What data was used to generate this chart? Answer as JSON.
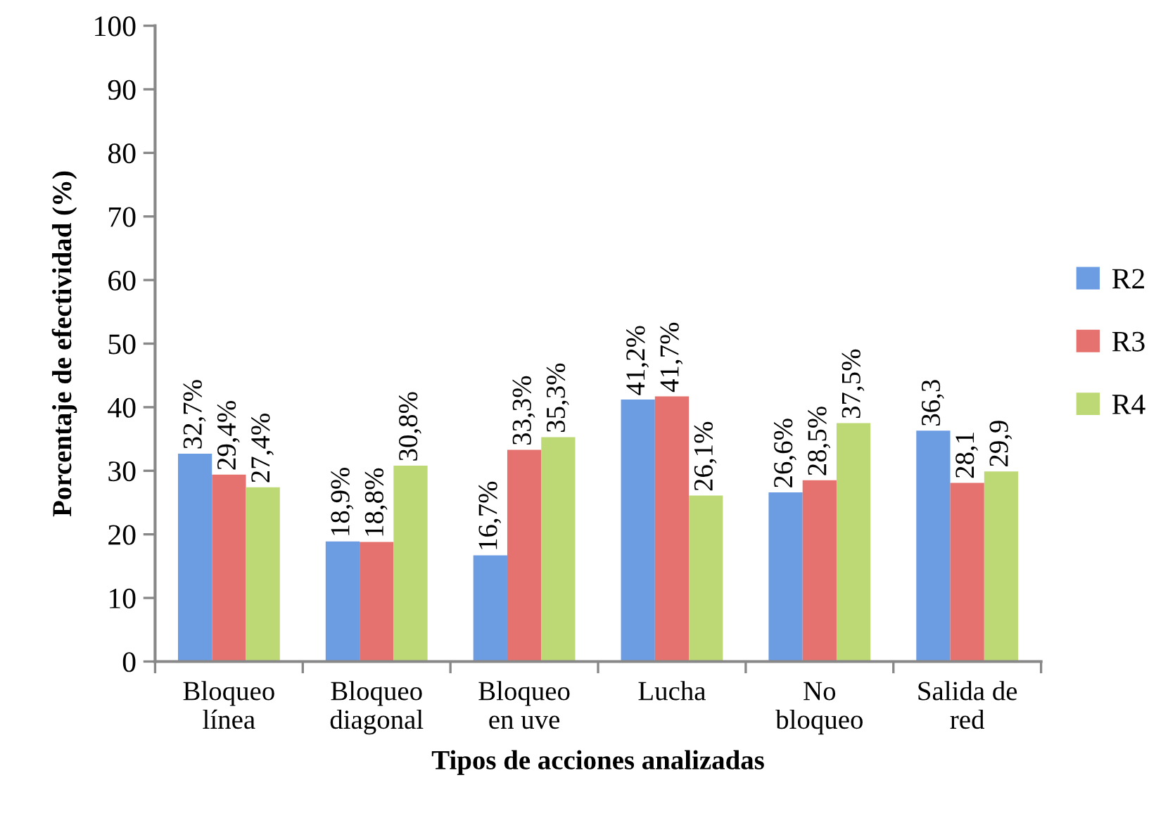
{
  "chart_data": {
    "type": "bar",
    "xlabel": "Tipos de acciones analizadas",
    "ylabel": "Porcentaje de efectividad (%)",
    "categories": [
      "Bloqueo\nlínea",
      "Bloqueo\ndiagonal",
      "Bloqueo\nen uve",
      "Lucha",
      "No\nbloqueo",
      "Salida de\nred"
    ],
    "series": [
      {
        "name": "R2",
        "color": "#6c9de3",
        "values": [
          32.7,
          18.9,
          16.7,
          41.2,
          26.6,
          36.3
        ],
        "value_labels": [
          "32,7%",
          "18,9%",
          "16,7%",
          "41,2%",
          "26,6%",
          "36,3"
        ]
      },
      {
        "name": "R3",
        "color": "#e5726f",
        "values": [
          29.4,
          18.8,
          33.3,
          41.7,
          28.5,
          28.1
        ],
        "value_labels": [
          "29,4%",
          "18,8%",
          "33,3%",
          "41,7%",
          "28,5%",
          "28,1"
        ]
      },
      {
        "name": "R4",
        "color": "#bcd975",
        "values": [
          27.4,
          30.8,
          35.3,
          26.1,
          37.5,
          29.9
        ],
        "value_labels": [
          "27,4%",
          "30,8%",
          "35,3%",
          "26,1%",
          "37,5%",
          "29,9"
        ]
      }
    ],
    "ylim": [
      0,
      100
    ],
    "yticks": [
      0,
      10,
      20,
      30,
      40,
      50,
      60,
      70,
      80,
      90,
      100
    ],
    "grid": false,
    "legend": "right"
  }
}
